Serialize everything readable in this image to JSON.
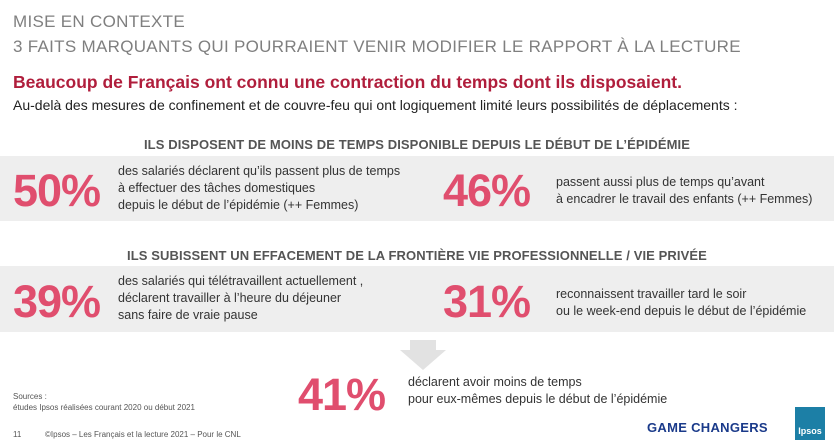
{
  "header": {
    "title": "MISE EN CONTEXTE",
    "subtitle": "3 FAITS MARQUANTS QUI POURRAIENT VENIR MODIFIER LE RAPPORT À LA LECTURE",
    "headline": "Beaucoup de Français ont connu une contraction du temps dont ils disposaient.",
    "intro": "Au-delà des mesures de confinement et de couvre-feu qui ont logiquement limité leurs possibilités de  déplacements :"
  },
  "section1": {
    "title": "ILS DISPOSENT DE MOINS DE TEMPS DISPONIBLE DEPUIS LE DÉBUT DE L’ÉPIDÉMIE",
    "left": {
      "value": "50%",
      "text": "des salariés déclarent qu’ils passent plus de temps\nà effectuer des tâches domestiques\ndepuis le début de l’épidémie (++ Femmes)"
    },
    "right": {
      "value": "46%",
      "text": "passent aussi plus de temps qu’avant\nà encadrer le travail des enfants (++ Femmes)"
    }
  },
  "section2": {
    "title": "ILS SUBISSENT UN EFFACEMENT DE LA FRONTIÈRE VIE PROFESSIONNELLE / VIE PRIVÉE",
    "left": {
      "value": "39%",
      "text": "des salariés qui télétravaillent actuellement ,\ndéclarent travailler à l’heure du déjeuner\nsans faire de vraie pause"
    },
    "right": {
      "value": "31%",
      "text": "reconnaissent travailler tard le soir\nou le week-end depuis le début de l’épidémie"
    }
  },
  "conclusion": {
    "value": "41%",
    "text": "déclarent avoir moins de temps\npour eux-mêmes depuis le début de l’épidémie"
  },
  "footer": {
    "sources": "Sources :\nétudes Ipsos  réalisées courant 2020 ou début 2021",
    "page_number": "11",
    "copyright": "©Ipsos – Les Français et la lecture 2021 – Pour le CNL",
    "brand_tagline": "GAME CHANGERS",
    "logo_text": "Ipsos"
  },
  "colors": {
    "accent_red": "#b01e3c",
    "percent_pink": "#e04e6e",
    "band_gray": "#eeeeee",
    "brand_blue": "#1a3a8a",
    "logo_teal": "#1c7fa6"
  }
}
